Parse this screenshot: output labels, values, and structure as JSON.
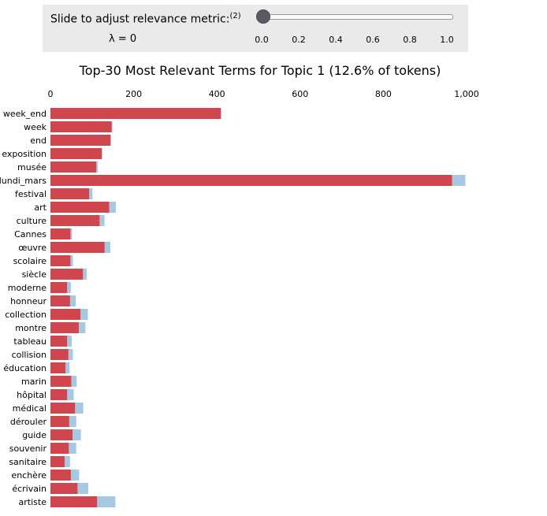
{
  "lambda_control": {
    "label": "Slide to adjust relevance metric:",
    "footnote": "(2)",
    "value_text": "λ = 0",
    "value": 0,
    "ticks": [
      "0.0",
      "0.2",
      "0.4",
      "0.6",
      "0.8",
      "1.0"
    ]
  },
  "colors": {
    "topic_bar": "#d0464e",
    "overall_bar": "#a6c8e2",
    "panel_bg": "#eaeaea"
  },
  "chart_data": {
    "type": "bar",
    "orientation": "horizontal",
    "title": "Top-30 Most Relevant Terms for Topic 1 (12.6% of tokens)",
    "xlim": [
      0,
      1000
    ],
    "xticks": [
      "0",
      "200",
      "400",
      "600",
      "800",
      "1,000"
    ],
    "grid": false,
    "categories": [
      "week_end",
      "week",
      "end",
      "exposition",
      "musée",
      "lundi_mars",
      "festival",
      "art",
      "culture",
      "Cannes",
      "œuvre",
      "scolaire",
      "siècle",
      "moderne",
      "honneur",
      "collection",
      "montre",
      "tableau",
      "collision",
      "éducation",
      "marin",
      "hôpital",
      "médical",
      "dérouler",
      "guide",
      "souvenir",
      "sanitaire",
      "enchère",
      "écrivain",
      "artiste"
    ],
    "series": [
      {
        "role": "overall_term_frequency",
        "values": [
          411,
          149,
          146,
          125,
          114,
          997,
          101,
          157,
          130,
          52,
          144,
          54,
          87,
          49,
          61,
          90,
          84,
          51,
          54,
          46,
          63,
          56,
          79,
          62,
          73,
          62,
          47,
          69,
          91,
          156
        ]
      },
      {
        "role": "topic_term_frequency",
        "values": [
          409,
          147,
          144,
          123,
          110,
          965,
          93,
          141,
          118,
          48,
          130,
          48,
          78,
          40,
          47,
          72,
          68,
          40,
          43,
          36,
          50,
          40,
          59,
          45,
          53,
          44,
          34,
          49,
          65,
          112
        ]
      }
    ]
  }
}
